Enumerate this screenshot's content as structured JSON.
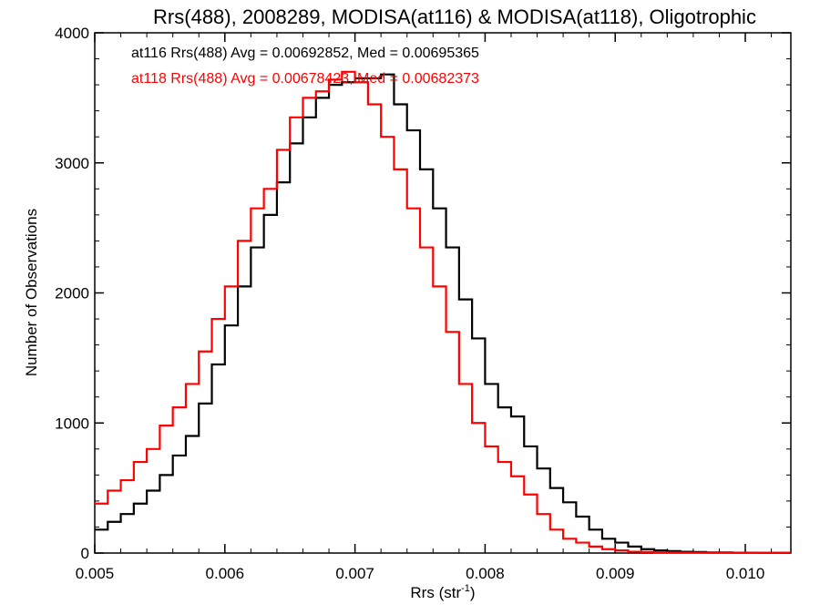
{
  "chart_data": {
    "type": "histogram-step",
    "title": "Rrs(488), 2008289, MODISA(at116) & MODISA(at118), Oligotrophic",
    "xlabel_base": "Rrs (str",
    "xlabel_sup": "-1",
    "xlabel_end": ")",
    "ylabel": "Number of Observations",
    "xlim": [
      0.005,
      0.01035
    ],
    "ylim": [
      0,
      4000
    ],
    "xticks": [
      {
        "value": 0.005,
        "label": "0.005"
      },
      {
        "value": 0.006,
        "label": "0.006"
      },
      {
        "value": 0.007,
        "label": "0.007"
      },
      {
        "value": 0.008,
        "label": "0.008"
      },
      {
        "value": 0.009,
        "label": "0.009"
      },
      {
        "value": 0.01,
        "label": "0.010"
      }
    ],
    "yticks": [
      {
        "value": 0,
        "label": "0"
      },
      {
        "value": 1000,
        "label": "1000"
      },
      {
        "value": 2000,
        "label": "2000"
      },
      {
        "value": 3000,
        "label": "3000"
      },
      {
        "value": 4000,
        "label": "4000"
      }
    ],
    "legend": [
      {
        "text": "at116 Rrs(488) Avg = 0.00692852, Med = 0.00695365",
        "color": "#000000"
      },
      {
        "text": "at118 Rrs(488) Avg = 0.00678423, Med = 0.00682373",
        "color": "#ff0000"
      }
    ],
    "series": [
      {
        "name": "at116",
        "color": "#000000",
        "x": [
          0.005,
          0.0051,
          0.0052,
          0.0053,
          0.0054,
          0.0055,
          0.0056,
          0.0057,
          0.0058,
          0.0059,
          0.006,
          0.0061,
          0.0062,
          0.0063,
          0.0064,
          0.0065,
          0.0066,
          0.0067,
          0.0068,
          0.0069,
          0.007,
          0.0071,
          0.0072,
          0.0073,
          0.0074,
          0.0075,
          0.0076,
          0.0077,
          0.0078,
          0.0079,
          0.008,
          0.0081,
          0.0082,
          0.0083,
          0.0084,
          0.0085,
          0.0086,
          0.0087,
          0.0088,
          0.0089,
          0.009,
          0.0091,
          0.0092,
          0.0093,
          0.0094,
          0.0095,
          0.0096,
          0.0097,
          0.0098,
          0.0099,
          0.01,
          0.0101,
          0.0102,
          0.01035
        ],
        "y": [
          180,
          240,
          300,
          380,
          480,
          600,
          750,
          900,
          1150,
          1450,
          1750,
          2050,
          2350,
          2600,
          2850,
          3150,
          3350,
          3500,
          3600,
          3620,
          3650,
          3650,
          3680,
          3450,
          3250,
          2950,
          2650,
          2350,
          1950,
          1650,
          1300,
          1120,
          1050,
          820,
          650,
          500,
          390,
          280,
          180,
          110,
          80,
          50,
          30,
          20,
          15,
          10,
          8,
          5,
          5,
          3,
          3,
          2,
          2,
          2
        ]
      },
      {
        "name": "at118",
        "color": "#ff0000",
        "x": [
          0.005,
          0.0051,
          0.0052,
          0.0053,
          0.0054,
          0.0055,
          0.0056,
          0.0057,
          0.0058,
          0.0059,
          0.006,
          0.0061,
          0.0062,
          0.0063,
          0.0064,
          0.0065,
          0.0066,
          0.0067,
          0.0068,
          0.0069,
          0.007,
          0.0071,
          0.0072,
          0.0073,
          0.0074,
          0.0075,
          0.0076,
          0.0077,
          0.0078,
          0.0079,
          0.008,
          0.0081,
          0.0082,
          0.0083,
          0.0084,
          0.0085,
          0.0086,
          0.0087,
          0.0088,
          0.0089,
          0.009,
          0.0091,
          0.0092,
          0.0093,
          0.0094,
          0.0095,
          0.0096,
          0.0097,
          0.0098,
          0.0099,
          0.01,
          0.0101,
          0.0102,
          0.01035
        ],
        "y": [
          380,
          480,
          560,
          700,
          800,
          980,
          1120,
          1300,
          1550,
          1800,
          2050,
          2400,
          2650,
          2800,
          3100,
          3350,
          3500,
          3550,
          3640,
          3700,
          3620,
          3450,
          3200,
          2950,
          2650,
          2350,
          2050,
          1700,
          1300,
          1000,
          820,
          700,
          590,
          450,
          300,
          180,
          110,
          80,
          50,
          30,
          20,
          10,
          8,
          5,
          5,
          3,
          3,
          2,
          2,
          2,
          2,
          2,
          2,
          2
        ]
      }
    ]
  }
}
